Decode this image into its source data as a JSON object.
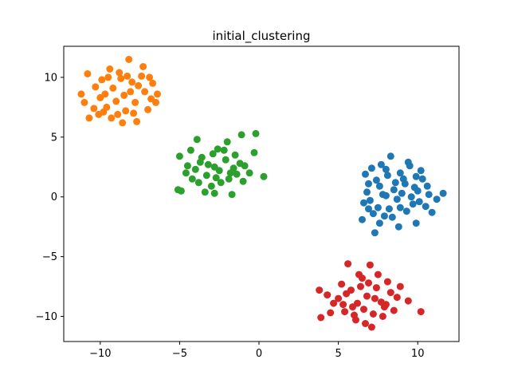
{
  "chart_data": {
    "type": "scatter",
    "title": "initial_clustering",
    "xlabel": "",
    "ylabel": "",
    "xlim": [
      -12.3,
      12.6
    ],
    "ylim": [
      -12.1,
      12.6
    ],
    "xticks": [
      -10,
      -5,
      0,
      5,
      10
    ],
    "yticks": [
      -10,
      -5,
      0,
      5,
      10
    ],
    "xtick_labels": [
      "−10",
      "−5",
      "0",
      "5",
      "10"
    ],
    "ytick_labels": [
      "−10",
      "−5",
      "0",
      "5",
      "10"
    ],
    "grid": false,
    "legend": "none",
    "series": [
      {
        "color": "#1f77b4",
        "points": [
          [
            8.5,
            0.6
          ],
          [
            9.2,
            1.1
          ],
          [
            7.8,
            0.2
          ],
          [
            10.1,
            -0.4
          ],
          [
            8.9,
            2.0
          ],
          [
            7.4,
            1.4
          ],
          [
            9.6,
            0.0
          ],
          [
            8.2,
            -1.0
          ],
          [
            10.6,
            0.9
          ],
          [
            7.0,
            -0.3
          ],
          [
            8.7,
            -0.2
          ],
          [
            9.9,
            1.7
          ],
          [
            7.6,
            0.9
          ],
          [
            8.0,
            2.3
          ],
          [
            9.3,
            -1.2
          ],
          [
            11.6,
            0.3
          ],
          [
            10.9,
            -1.3
          ],
          [
            6.9,
            1.1
          ],
          [
            6.6,
            -0.5
          ],
          [
            8.3,
            3.4
          ],
          [
            9.5,
            2.6
          ],
          [
            7.9,
            -1.6
          ],
          [
            8.8,
            -2.5
          ],
          [
            7.3,
            -3.0
          ],
          [
            9.9,
            -2.2
          ],
          [
            11.2,
            -0.2
          ],
          [
            10.3,
            1.5
          ],
          [
            6.8,
            0.4
          ],
          [
            7.5,
            -0.9
          ],
          [
            9.0,
            0.3
          ],
          [
            8.1,
            1.8
          ],
          [
            10.0,
            0.5
          ],
          [
            7.7,
            2.7
          ],
          [
            6.5,
            -1.9
          ],
          [
            9.4,
            2.9
          ],
          [
            10.5,
            -0.8
          ],
          [
            7.1,
            2.4
          ],
          [
            8.6,
            1.2
          ],
          [
            9.7,
            -0.6
          ],
          [
            6.7,
            1.9
          ],
          [
            8.4,
            -1.7
          ],
          [
            9.1,
            1.5
          ],
          [
            7.2,
            -1.4
          ],
          [
            10.2,
            2.2
          ],
          [
            8.0,
            0.1
          ],
          [
            9.8,
            0.8
          ],
          [
            6.9,
            -1.0
          ],
          [
            10.7,
            0.2
          ],
          [
            7.6,
            -2.2
          ],
          [
            8.9,
            -0.9
          ]
        ]
      },
      {
        "color": "#ff7f0e",
        "points": [
          [
            -8.5,
            8.5
          ],
          [
            -9.2,
            9.1
          ],
          [
            -7.8,
            7.9
          ],
          [
            -10.0,
            8.3
          ],
          [
            -8.0,
            9.6
          ],
          [
            -7.2,
            8.8
          ],
          [
            -9.6,
            7.5
          ],
          [
            -8.8,
            10.4
          ],
          [
            -11.2,
            8.6
          ],
          [
            -10.8,
            10.3
          ],
          [
            -8.2,
            11.5
          ],
          [
            -10.7,
            6.6
          ],
          [
            -8.6,
            6.2
          ],
          [
            -7.3,
            10.9
          ],
          [
            -6.5,
            7.9
          ],
          [
            -7.7,
            6.3
          ],
          [
            -9.3,
            6.6
          ],
          [
            -6.7,
            9.5
          ],
          [
            -9.9,
            9.8
          ],
          [
            -10.4,
            7.4
          ],
          [
            -8.4,
            7.2
          ],
          [
            -9.0,
            8.0
          ],
          [
            -7.6,
            9.3
          ],
          [
            -6.8,
            8.2
          ],
          [
            -9.5,
            10.0
          ],
          [
            -8.9,
            6.9
          ],
          [
            -7.0,
            7.3
          ],
          [
            -10.3,
            9.2
          ],
          [
            -11.0,
            7.9
          ],
          [
            -8.1,
            8.8
          ],
          [
            -9.7,
            8.6
          ],
          [
            -7.4,
            10.1
          ],
          [
            -6.4,
            8.6
          ],
          [
            -8.7,
            9.9
          ],
          [
            -10.1,
            6.9
          ],
          [
            -7.9,
            7.0
          ],
          [
            -9.4,
            10.7
          ],
          [
            -6.9,
            10.0
          ],
          [
            -8.3,
            10.1
          ],
          [
            -9.8,
            7.1
          ]
        ]
      },
      {
        "color": "#2ca02c",
        "points": [
          [
            -2.8,
            2.5
          ],
          [
            -2.1,
            3.1
          ],
          [
            -3.3,
            1.8
          ],
          [
            -1.8,
            2.0
          ],
          [
            -3.6,
            3.3
          ],
          [
            -2.4,
            1.2
          ],
          [
            -1.2,
            2.8
          ],
          [
            -4.0,
            2.3
          ],
          [
            -2.6,
            4.0
          ],
          [
            -3.0,
            0.9
          ],
          [
            -0.2,
            5.3
          ],
          [
            -1.1,
            5.2
          ],
          [
            -0.3,
            3.7
          ],
          [
            -5.0,
            3.4
          ],
          [
            -4.9,
            0.5
          ],
          [
            -5.1,
            0.6
          ],
          [
            -2.8,
            0.3
          ],
          [
            -1.7,
            0.2
          ],
          [
            -3.9,
            4.8
          ],
          [
            0.3,
            1.7
          ],
          [
            -4.5,
            2.6
          ],
          [
            -0.6,
            2.0
          ],
          [
            -3.4,
            0.4
          ],
          [
            -2.2,
            3.9
          ],
          [
            -1.5,
            3.5
          ],
          [
            -4.2,
            1.5
          ],
          [
            -2.9,
            3.6
          ],
          [
            -1.9,
            1.5
          ],
          [
            -3.7,
            2.9
          ],
          [
            -0.9,
            2.6
          ],
          [
            -2.5,
            2.2
          ],
          [
            -3.2,
            2.7
          ],
          [
            -1.4,
            1.9
          ],
          [
            -4.6,
            2.0
          ],
          [
            -2.0,
            4.6
          ],
          [
            -3.8,
            1.2
          ],
          [
            -1.0,
            1.3
          ],
          [
            -2.7,
            1.6
          ],
          [
            -4.3,
            3.9
          ],
          [
            -1.6,
            2.4
          ]
        ]
      },
      {
        "color": "#d62728",
        "points": [
          [
            6.8,
            -8.3
          ],
          [
            7.4,
            -7.6
          ],
          [
            6.2,
            -8.9
          ],
          [
            7.9,
            -9.2
          ],
          [
            5.8,
            -7.8
          ],
          [
            6.5,
            -6.8
          ],
          [
            7.2,
            -9.8
          ],
          [
            8.3,
            -8.0
          ],
          [
            5.3,
            -9.0
          ],
          [
            6.9,
            -7.2
          ],
          [
            3.8,
            -7.8
          ],
          [
            3.9,
            -10.1
          ],
          [
            4.5,
            -9.7
          ],
          [
            5.6,
            -5.6
          ],
          [
            7.0,
            -5.7
          ],
          [
            10.2,
            -9.6
          ],
          [
            7.1,
            -10.9
          ],
          [
            9.4,
            -8.7
          ],
          [
            8.9,
            -7.5
          ],
          [
            5.0,
            -8.5
          ],
          [
            6.0,
            -9.9
          ],
          [
            7.7,
            -8.8
          ],
          [
            6.4,
            -7.5
          ],
          [
            8.5,
            -9.5
          ],
          [
            5.5,
            -8.1
          ],
          [
            7.5,
            -6.5
          ],
          [
            6.1,
            -10.3
          ],
          [
            4.7,
            -8.9
          ],
          [
            8.1,
            -7.1
          ],
          [
            6.6,
            -9.4
          ],
          [
            7.8,
            -10.0
          ],
          [
            5.2,
            -7.3
          ],
          [
            6.3,
            -6.5
          ],
          [
            8.7,
            -8.4
          ],
          [
            4.3,
            -8.2
          ],
          [
            7.3,
            -8.5
          ],
          [
            5.9,
            -9.2
          ],
          [
            6.7,
            -10.6
          ],
          [
            8.0,
            -9.0
          ],
          [
            5.4,
            -9.6
          ]
        ]
      }
    ]
  }
}
